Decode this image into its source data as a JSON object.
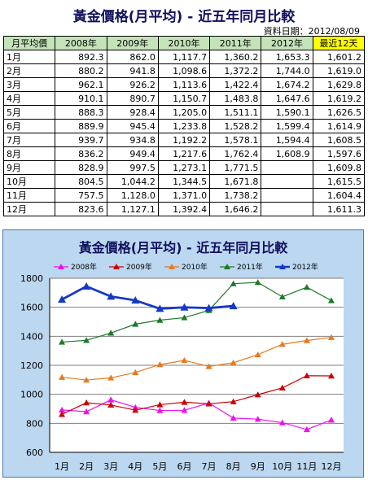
{
  "title": "黃金價格(月平均) - 近五年同月比較",
  "date_label": "資料日期：2012/08/09",
  "table": {
    "headers": [
      "月平均價",
      "2008年",
      "2009年",
      "2010年",
      "2011年",
      "2012年",
      "最近12天"
    ],
    "rows": [
      [
        "1月",
        "892.3",
        "862.0",
        "1,117.7",
        "1,360.2",
        "1,653.3",
        "1,601.2"
      ],
      [
        "2月",
        "880.2",
        "941.8",
        "1,098.6",
        "1,372.2",
        "1,744.0",
        "1,619.0"
      ],
      [
        "3月",
        "962.1",
        "926.2",
        "1,113.6",
        "1,422.4",
        "1,674.2",
        "1,629.8"
      ],
      [
        "4月",
        "910.1",
        "890.7",
        "1,150.7",
        "1,483.8",
        "1,647.6",
        "1,619.2"
      ],
      [
        "5月",
        "888.3",
        "928.4",
        "1,205.0",
        "1,511.1",
        "1,590.1",
        "1,626.5"
      ],
      [
        "6月",
        "889.9",
        "945.4",
        "1,233.8",
        "1,528.2",
        "1,599.4",
        "1,614.9"
      ],
      [
        "7月",
        "939.7",
        "934.8",
        "1,192.2",
        "1,578.1",
        "1,594.4",
        "1,608.5"
      ],
      [
        "8月",
        "836.2",
        "949.4",
        "1,217.6",
        "1,762.4",
        "1,608.9",
        "1,597.6"
      ],
      [
        "9月",
        "828.9",
        "997.5",
        "1,273.1",
        "1,771.5",
        "",
        "1,609.8"
      ],
      [
        "10月",
        "804.5",
        "1,044.2",
        "1,344.5",
        "1,671.8",
        "",
        "1,615.5"
      ],
      [
        "11月",
        "757.5",
        "1,128.0",
        "1,371.0",
        "1,738.2",
        "",
        "1,604.4"
      ],
      [
        "12月",
        "823.6",
        "1,127.1",
        "1,392.4",
        "1,646.2",
        "",
        "1,611.3"
      ]
    ]
  },
  "chart_data": {
    "type": "line",
    "title": "黃金價格(月平均) - 近五年同月比較",
    "categories": [
      "1月",
      "2月",
      "3月",
      "4月",
      "5月",
      "6月",
      "7月",
      "8月",
      "9月",
      "10月",
      "11月",
      "12月"
    ],
    "ylim": [
      600,
      1800
    ],
    "yticks": [
      600,
      800,
      1000,
      1200,
      1400,
      1600,
      1800
    ],
    "legend_position": "top",
    "series": [
      {
        "name": "2008年",
        "color": "#ee11ee",
        "marker": "triangle",
        "values": [
          892.3,
          880.2,
          962.1,
          910.1,
          888.3,
          889.9,
          939.7,
          836.2,
          828.9,
          804.5,
          757.5,
          823.6
        ]
      },
      {
        "name": "2009年",
        "color": "#cc0000",
        "marker": "triangle",
        "values": [
          862.0,
          941.8,
          926.2,
          890.7,
          928.4,
          945.4,
          934.8,
          949.4,
          997.5,
          1044.2,
          1128.0,
          1127.1
        ]
      },
      {
        "name": "2010年",
        "color": "#e87a1e",
        "marker": "triangle",
        "values": [
          1117.7,
          1098.6,
          1113.6,
          1150.7,
          1205.0,
          1233.8,
          1192.2,
          1217.6,
          1273.1,
          1344.5,
          1371.0,
          1392.4
        ]
      },
      {
        "name": "2011年",
        "color": "#1d7a2a",
        "marker": "triangle",
        "values": [
          1360.2,
          1372.2,
          1422.4,
          1483.8,
          1511.1,
          1528.2,
          1578.1,
          1762.4,
          1771.5,
          1671.8,
          1738.2,
          1646.2
        ]
      },
      {
        "name": "2012年",
        "color": "#1638c8",
        "marker": "triangle",
        "values": [
          1653.3,
          1744.0,
          1674.2,
          1647.6,
          1590.1,
          1599.4,
          1594.4,
          1608.9,
          null,
          null,
          null,
          null
        ]
      }
    ]
  }
}
